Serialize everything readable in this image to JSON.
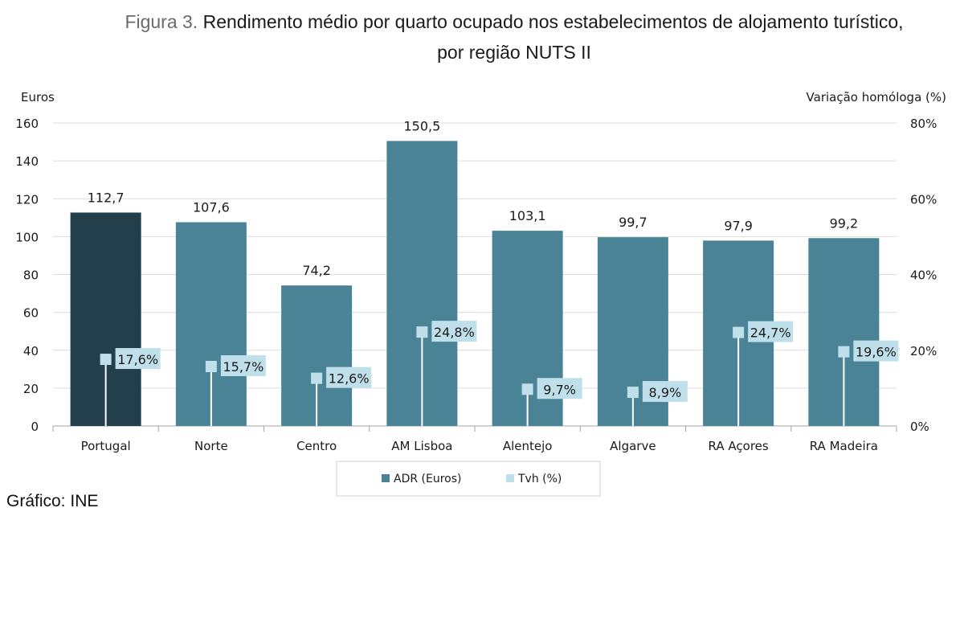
{
  "title": {
    "prefix": "Figura 3.",
    "line1": "Rendimento médio por quarto ocupado nos estabelecimentos de alojamento turístico,",
    "line2": "por região NUTS II"
  },
  "source": "Gráfico: INE",
  "colors": {
    "portugal_bar": "#243f4c",
    "region_bar": "#4a8396",
    "tvh_marker": "#bfe0ea",
    "gridline": "#dcdcdc",
    "axis": "#a6a6a6"
  },
  "chart_data": {
    "type": "bar",
    "categories": [
      "Portugal",
      "Norte",
      "Centro",
      "AM Lisboa",
      "Alentejo",
      "Algarve",
      "RA Açores",
      "RA Madeira"
    ],
    "series": [
      {
        "name": "ADR (Euros)",
        "axis": "left",
        "values": [
          112.7,
          107.6,
          74.2,
          150.5,
          103.1,
          99.7,
          97.9,
          99.2
        ],
        "labels": [
          "112,7",
          "107,6",
          "74,2",
          "150,5",
          "103,1",
          "99,7",
          "97,9",
          "99,2"
        ]
      },
      {
        "name": "Tvh (%)",
        "axis": "right",
        "values": [
          17.6,
          15.7,
          12.6,
          24.8,
          9.7,
          8.9,
          24.7,
          19.6
        ],
        "labels": [
          "17,6%",
          "15,7%",
          "12,6%",
          "24,8%",
          "9,7%",
          "8,9%",
          "24,7%",
          "19,6%"
        ]
      }
    ],
    "ylabel": "Euros",
    "ylim": [
      0,
      160
    ],
    "yticks": [
      "0",
      "20",
      "40",
      "60",
      "80",
      "100",
      "120",
      "140",
      "160"
    ],
    "y2label": "Variação homóloga (%)",
    "y2lim": [
      0,
      80
    ],
    "y2ticks": [
      "0%",
      "20%",
      "40%",
      "60%",
      "80%"
    ],
    "grid": true,
    "legend": "bottom"
  }
}
